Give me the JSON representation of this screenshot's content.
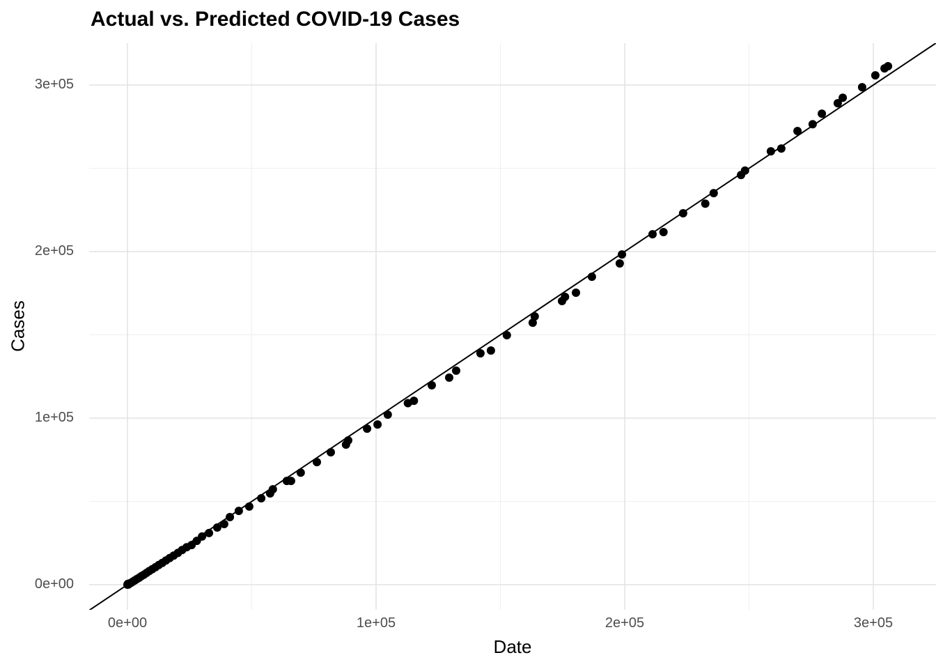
{
  "chart_data": {
    "type": "scatter",
    "title": "Actual vs. Predicted COVID-19 Cases",
    "xlabel": "Date",
    "ylabel": "Cases",
    "legend": "none",
    "grid": "major and minor, light gray on white",
    "xlim": [
      -15400,
      325200
    ],
    "ylim": [
      -15100,
      325100
    ],
    "x_ticks": [
      {
        "value": 0,
        "label": "0e+00"
      },
      {
        "value": 100000,
        "label": "1e+05"
      },
      {
        "value": 200000,
        "label": "2e+05"
      },
      {
        "value": 300000,
        "label": "3e+05"
      }
    ],
    "y_ticks": [
      {
        "value": 0,
        "label": "0e+00"
      },
      {
        "value": 100000,
        "label": "1e+05"
      },
      {
        "value": 200000,
        "label": "2e+05"
      },
      {
        "value": 300000,
        "label": "3e+05"
      }
    ],
    "x_minor": [
      50000,
      150000,
      250000
    ],
    "y_minor": [
      50000,
      150000,
      250000
    ],
    "reference_line": {
      "type": "identity",
      "slope": 1,
      "intercept": 0
    },
    "points": [
      [
        0,
        0
      ],
      [
        200,
        500
      ],
      [
        400,
        100
      ],
      [
        900,
        700
      ],
      [
        1500,
        1200
      ],
      [
        2200,
        1900
      ],
      [
        3000,
        2600
      ],
      [
        3800,
        3400
      ],
      [
        4700,
        4200
      ],
      [
        5600,
        5100
      ],
      [
        6600,
        6000
      ],
      [
        7700,
        7100
      ],
      [
        8800,
        8200
      ],
      [
        10000,
        9300
      ],
      [
        11300,
        10500
      ],
      [
        12600,
        11800
      ],
      [
        14000,
        13100
      ],
      [
        15500,
        14500
      ],
      [
        17000,
        16000
      ],
      [
        18600,
        17500
      ],
      [
        20300,
        19100
      ],
      [
        22000,
        20800
      ],
      [
        23800,
        22500
      ],
      [
        25800,
        23800
      ],
      [
        27900,
        26300
      ],
      [
        30000,
        28900
      ],
      [
        32800,
        31000
      ],
      [
        36100,
        34300
      ],
      [
        38900,
        36400
      ],
      [
        41200,
        40600
      ],
      [
        44800,
        44300
      ],
      [
        49000,
        46900
      ],
      [
        53800,
        51900
      ],
      [
        57400,
        54800
      ],
      [
        58500,
        57300
      ],
      [
        64100,
        62300
      ],
      [
        65800,
        62300
      ],
      [
        69700,
        67300
      ],
      [
        76200,
        73600
      ],
      [
        81800,
        79500
      ],
      [
        87900,
        84100
      ],
      [
        88800,
        86600
      ],
      [
        96400,
        93700
      ],
      [
        100600,
        96200
      ],
      [
        104700,
        102100
      ],
      [
        112800,
        109000
      ],
      [
        115200,
        110400
      ],
      [
        122400,
        119700
      ],
      [
        129400,
        124300
      ],
      [
        132200,
        128500
      ],
      [
        142000,
        138900
      ],
      [
        146200,
        140600
      ],
      [
        152600,
        149800
      ],
      [
        163000,
        157300
      ],
      [
        163800,
        161100
      ],
      [
        174800,
        170300
      ],
      [
        176000,
        172800
      ],
      [
        180400,
        175300
      ],
      [
        186800,
        184900
      ],
      [
        198000,
        192900
      ],
      [
        198900,
        198300
      ],
      [
        211200,
        210400
      ],
      [
        215600,
        211700
      ],
      [
        223500,
        223000
      ],
      [
        232400,
        228800
      ],
      [
        235800,
        235100
      ],
      [
        246800,
        246000
      ],
      [
        248400,
        248600
      ],
      [
        258800,
        260200
      ],
      [
        263000,
        261900
      ],
      [
        269500,
        272400
      ],
      [
        275600,
        276500
      ],
      [
        279300,
        282800
      ],
      [
        285700,
        289100
      ],
      [
        287700,
        292400
      ],
      [
        295500,
        298700
      ],
      [
        300800,
        305800
      ],
      [
        304500,
        310000
      ],
      [
        305900,
        311300
      ]
    ],
    "colors": {
      "point": "#000000",
      "line": "#000000",
      "grid_major": "#e2e2e2",
      "grid_minor": "#efefef",
      "tick_label": "#4d4d4d",
      "title": "#000000",
      "background": "#ffffff"
    }
  }
}
